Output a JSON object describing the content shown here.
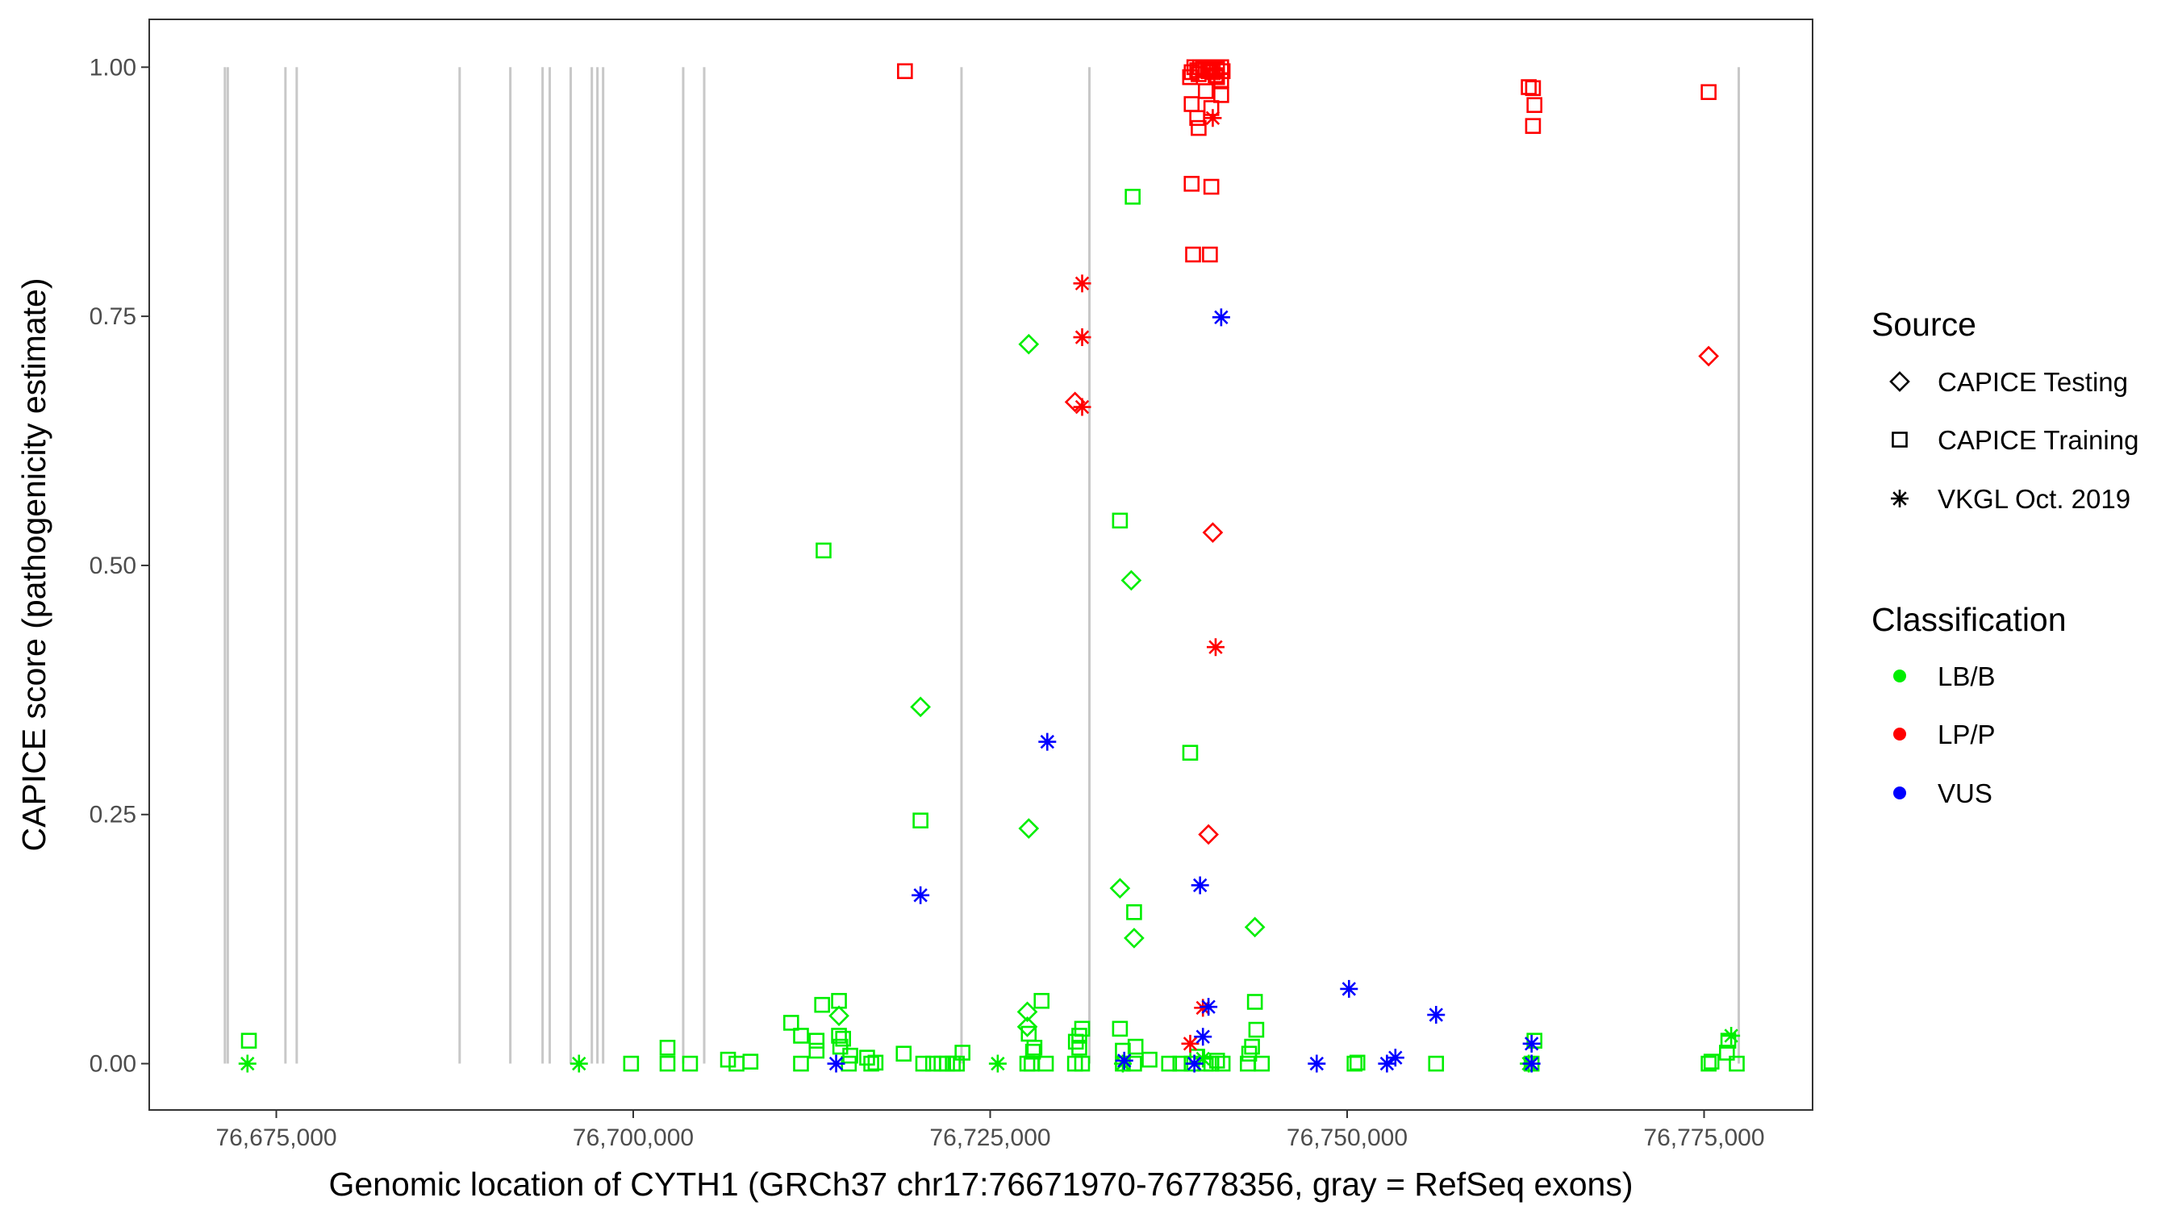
{
  "chart_data": {
    "type": "scatter",
    "title": "",
    "xlabel": "Genomic location of CYTH1 (GRCh37 chr17:76671970-76778356, gray = RefSeq exons)",
    "ylabel": "CAPICE score (pathogenicity estimate)",
    "xlim": [
      76666100,
      76782600
    ],
    "ylim": [
      -0.0465,
      1.048
    ],
    "grid": false,
    "x_ticks": [
      76675000,
      76700000,
      76725000,
      76750000,
      76775000
    ],
    "x_tick_labels": [
      "76,675,000",
      "76,700,000",
      "76,725,000",
      "76,750,000",
      "76,775,000"
    ],
    "y_ticks": [
      0,
      0.25,
      0.5,
      0.75,
      1.0
    ],
    "y_tick_labels": [
      "0.00",
      "0.25",
      "0.50",
      "0.75",
      "1.00"
    ],
    "exon_lines_x": [
      76671400,
      76671600,
      76675640,
      76676430,
      76687840,
      76691390,
      76693650,
      76694150,
      76695620,
      76697100,
      76697490,
      76697890,
      76703500,
      76704970,
      76722990,
      76731950,
      76777430
    ],
    "exon_color": "#c8c8c8",
    "legend": {
      "placement": "right",
      "source_title": "Source",
      "source_items": [
        {
          "label": "CAPICE Testing",
          "shape": "diamond"
        },
        {
          "label": "CAPICE Training",
          "shape": "square"
        },
        {
          "label": "VKGL Oct. 2019",
          "shape": "asterisk"
        }
      ],
      "class_title": "Classification",
      "class_items": [
        {
          "label": "LB/B",
          "color": "#00ee00"
        },
        {
          "label": "LP/P",
          "color": "#ff0000"
        },
        {
          "label": "VUS",
          "color": "#0000ff"
        }
      ]
    },
    "series": [
      {
        "source": "CAPICE Training",
        "classification": "LB/B",
        "points": [
          [
            76673080,
            0.023
          ],
          [
            76699850,
            0
          ],
          [
            76702400,
            0.016
          ],
          [
            76702400,
            0
          ],
          [
            76703980,
            0
          ],
          [
            76706640,
            0.004
          ],
          [
            76707230,
            0
          ],
          [
            76708210,
            0.002
          ],
          [
            76711060,
            0.041
          ],
          [
            76711750,
            0.028
          ],
          [
            76711750,
            0
          ],
          [
            76712840,
            0.023
          ],
          [
            76712840,
            0.013
          ],
          [
            76713230,
            0.059
          ],
          [
            76713330,
            0.515
          ],
          [
            76714410,
            0.063
          ],
          [
            76714410,
            0.028
          ],
          [
            76714500,
            0.017
          ],
          [
            76714700,
            0.025
          ],
          [
            76715100,
            0
          ],
          [
            76715200,
            0.008
          ],
          [
            76716380,
            0.006
          ],
          [
            76716670,
            0
          ],
          [
            76716970,
            0.001
          ],
          [
            76718940,
            0.01
          ],
          [
            76720120,
            0.244
          ],
          [
            76720310,
            0
          ],
          [
            76721000,
            0
          ],
          [
            76721590,
            0
          ],
          [
            76721980,
            0
          ],
          [
            76722380,
            0
          ],
          [
            76722670,
            0
          ],
          [
            76723060,
            0.011
          ],
          [
            76727600,
            0
          ],
          [
            76727700,
            0.03
          ],
          [
            76727900,
            0
          ],
          [
            76728000,
            0.012
          ],
          [
            76728100,
            0.016
          ],
          [
            76728600,
            0.063
          ],
          [
            76728900,
            0
          ],
          [
            76730940,
            0
          ],
          [
            76731240,
            0.016
          ],
          [
            76731240,
            0.028
          ],
          [
            76731440,
            0
          ],
          [
            76731440,
            0.035
          ],
          [
            76731000,
            0.022
          ],
          [
            76734980,
            0.87
          ],
          [
            76734090,
            0.545
          ],
          [
            76734090,
            0.035
          ],
          [
            76734290,
            0.013
          ],
          [
            76734290,
            0
          ],
          [
            76735080,
            0
          ],
          [
            76735180,
            0.017
          ],
          [
            76735080,
            0.152
          ],
          [
            76736160,
            0.004
          ],
          [
            76737530,
            0
          ],
          [
            76738320,
            0
          ],
          [
            76739010,
            0.312
          ],
          [
            76739110,
            0
          ],
          [
            76739500,
            0.007
          ],
          [
            76740100,
            0
          ],
          [
            76740490,
            0
          ],
          [
            76740890,
            0.003
          ],
          [
            76741280,
            0
          ],
          [
            76743040,
            0
          ],
          [
            76743140,
            0.01
          ],
          [
            76743340,
            0.017
          ],
          [
            76743540,
            0.062
          ],
          [
            76743640,
            0.034
          ],
          [
            76744030,
            0
          ],
          [
            76750520,
            0
          ],
          [
            76750720,
            0.001
          ],
          [
            76756230,
            0
          ],
          [
            76762920,
            0
          ],
          [
            76763120,
            0.023
          ],
          [
            76775320,
            0
          ],
          [
            76775520,
            0.002
          ],
          [
            76776600,
            0.011
          ],
          [
            76776700,
            0.023
          ],
          [
            76777290,
            0
          ]
        ]
      },
      {
        "source": "CAPICE Testing",
        "classification": "LB/B",
        "points": [
          [
            76727700,
            0.722
          ],
          [
            76720120,
            0.358
          ],
          [
            76727700,
            0.236
          ],
          [
            76734880,
            0.485
          ],
          [
            76734090,
            0.176
          ],
          [
            76735080,
            0.126
          ],
          [
            76743540,
            0.137
          ],
          [
            76714410,
            0.048
          ],
          [
            76727600,
            0.052
          ],
          [
            76727600,
            0.037
          ]
        ]
      },
      {
        "source": "VKGL Oct. 2019",
        "classification": "LB/B",
        "points": [
          [
            76672980,
            0
          ],
          [
            76696200,
            0
          ],
          [
            76725530,
            0
          ],
          [
            76776900,
            0.028
          ],
          [
            76762720,
            0
          ],
          [
            76734290,
            0
          ],
          [
            76739900,
            0.005
          ]
        ]
      },
      {
        "source": "CAPICE Training",
        "classification": "LP/P",
        "points": [
          [
            76719030,
            0.996
          ],
          [
            76739110,
            0.883
          ],
          [
            76740490,
            0.88
          ],
          [
            76739210,
            0.812
          ],
          [
            76740390,
            0.812
          ],
          [
            76739000,
            0.99
          ],
          [
            76739110,
            0.995
          ],
          [
            76739300,
            1.0
          ],
          [
            76739500,
            0.997
          ],
          [
            76739600,
            0.993
          ],
          [
            76739700,
            1.0
          ],
          [
            76739900,
            0.998
          ],
          [
            76740100,
            1.0
          ],
          [
            76740290,
            0.996
          ],
          [
            76740390,
            0.999
          ],
          [
            76740490,
            1.0
          ],
          [
            76740590,
            0.995
          ],
          [
            76740790,
            0.992
          ],
          [
            76740890,
            0.998
          ],
          [
            76741180,
            1.0
          ],
          [
            76741280,
            0.996
          ],
          [
            76741180,
            0.987
          ],
          [
            76740890,
            0.99
          ],
          [
            76739110,
            0.963
          ],
          [
            76739500,
            0.949
          ],
          [
            76739600,
            0.939
          ],
          [
            76740100,
            0.976
          ],
          [
            76740490,
            0.959
          ],
          [
            76741180,
            0.972
          ],
          [
            76762720,
            0.98
          ],
          [
            76763020,
            0.979
          ],
          [
            76763120,
            0.962
          ],
          [
            76763020,
            0.941
          ],
          [
            76775320,
            0.975
          ]
        ]
      },
      {
        "source": "CAPICE Testing",
        "classification": "LP/P",
        "points": [
          [
            76730940,
            0.664
          ],
          [
            76740590,
            0.533
          ],
          [
            76740290,
            0.23
          ],
          [
            76775320,
            0.71
          ]
        ]
      },
      {
        "source": "VKGL Oct. 2019",
        "classification": "LP/P",
        "points": [
          [
            76731440,
            0.783
          ],
          [
            76731440,
            0.729
          ],
          [
            76731440,
            0.659
          ],
          [
            76740790,
            0.418
          ],
          [
            76740590,
            0.949
          ],
          [
            76739010,
            0.02
          ],
          [
            76739900,
            0.056
          ]
        ]
      },
      {
        "source": "VKGL Oct. 2019",
        "classification": "VUS",
        "points": [
          [
            76741180,
            0.749
          ],
          [
            76729000,
            0.323
          ],
          [
            76720120,
            0.169
          ],
          [
            76739700,
            0.179
          ],
          [
            76750130,
            0.075
          ],
          [
            76756230,
            0.049
          ],
          [
            76740290,
            0.057
          ],
          [
            76739900,
            0.027
          ],
          [
            76714210,
            0
          ],
          [
            76734390,
            0.003
          ],
          [
            76739300,
            0
          ],
          [
            76747870,
            0
          ],
          [
            76752790,
            0
          ],
          [
            76753380,
            0.006
          ],
          [
            76762920,
            0.02
          ],
          [
            76762920,
            0
          ]
        ]
      }
    ]
  }
}
